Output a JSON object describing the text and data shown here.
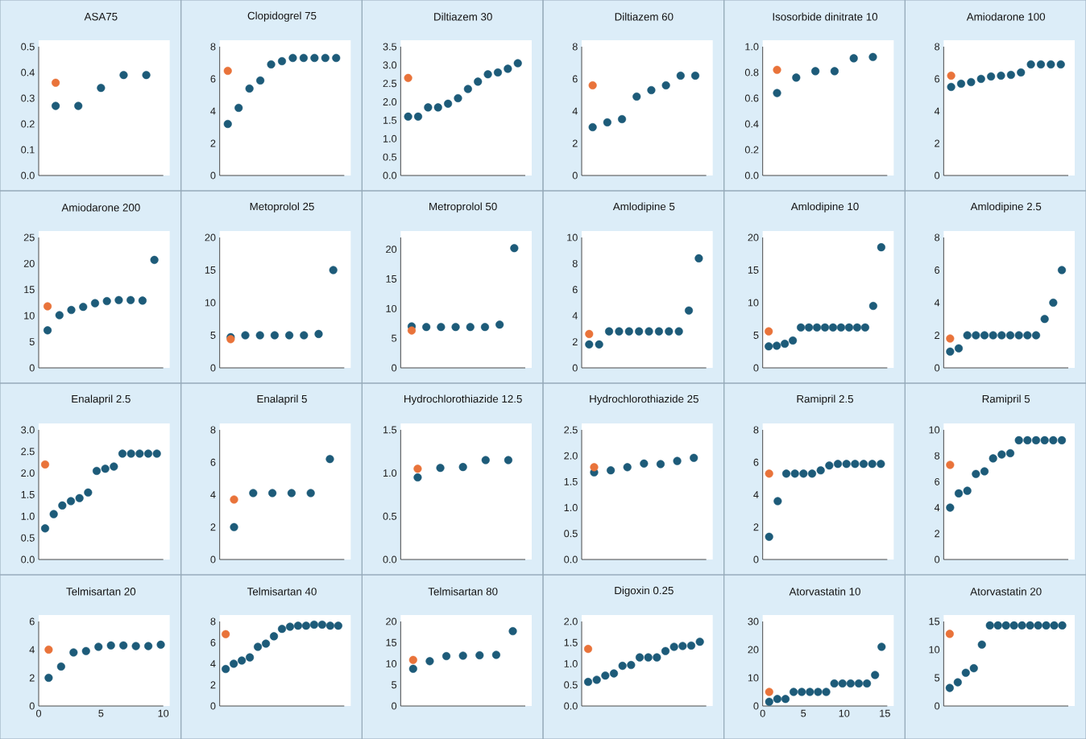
{
  "chart_data": [
    {
      "type": "scatter",
      "title": "ASA75",
      "categories": [
        null,
        null,
        null,
        null,
        null
      ],
      "ylim": [
        0,
        0.5
      ],
      "yticks": [
        {
          "value": 0,
          "label": "0.0"
        },
        0.1,
        0.2,
        0.3,
        0.4,
        0.5
      ],
      "tick_labels": "y",
      "marker": "circle",
      "series": [
        {
          "color": "#1d5b79",
          "values": [
            0.27,
            0.27,
            0.34,
            0.39,
            0.39
          ]
        },
        {
          "color": "#e9733a",
          "values": [
            0.36,
            null,
            null,
            null,
            null
          ]
        }
      ]
    },
    {
      "type": "scatter",
      "title": "Clopidogrel 75",
      "categories": [
        null,
        null,
        null,
        null,
        null,
        null,
        null,
        null,
        null,
        null,
        null
      ],
      "ylim": [
        0,
        8
      ],
      "yticks": [
        0,
        2,
        4,
        6,
        8
      ],
      "tick_labels": "y",
      "marker": "circle",
      "series": [
        {
          "color": "#1d5b79",
          "values": [
            3.2,
            4.2,
            5.4,
            5.9,
            6.9,
            7.1,
            7.3,
            7.3,
            7.3,
            7.3,
            7.3
          ]
        },
        {
          "color": "#e9733a",
          "values": [
            6.5,
            null,
            null,
            null,
            null,
            null,
            null,
            null,
            null,
            null,
            null
          ]
        }
      ]
    },
    {
      "type": "scatter",
      "title": "Diltiazem 30",
      "categories": [
        null,
        null,
        null,
        null,
        null,
        null,
        null,
        null,
        null,
        null,
        null,
        null
      ],
      "ylim": [
        0,
        3.5
      ],
      "yticks": [
        {
          "value": 0,
          "label": "0.0"
        },
        0.5,
        {
          "value": 1,
          "label": "1.0"
        },
        1.5,
        {
          "value": 2,
          "label": "2.0"
        },
        2.5,
        {
          "value": 3,
          "label": "3.0"
        },
        3.5
      ],
      "tick_labels": "y",
      "marker": "circle",
      "series": [
        {
          "color": "#1d5b79",
          "values": [
            1.6,
            1.6,
            1.85,
            1.85,
            1.95,
            2.1,
            2.35,
            2.55,
            2.75,
            2.8,
            2.9,
            3.05
          ]
        },
        {
          "color": "#e9733a",
          "values": [
            2.65,
            null,
            null,
            null,
            null,
            null,
            null,
            null,
            null,
            null,
            null,
            null
          ]
        }
      ]
    },
    {
      "type": "scatter",
      "title": "Diltiazem 60",
      "categories": [
        null,
        null,
        null,
        null,
        null,
        null,
        null,
        null
      ],
      "ylim": [
        0,
        8
      ],
      "yticks": [
        0,
        2,
        4,
        6,
        8
      ],
      "tick_labels": "y",
      "marker": "circle",
      "series": [
        {
          "color": "#1d5b79",
          "values": [
            3.0,
            3.3,
            3.5,
            4.9,
            5.3,
            5.6,
            6.2,
            6.2
          ]
        },
        {
          "color": "#e9733a",
          "values": [
            5.6,
            null,
            null,
            null,
            null,
            null,
            null,
            null
          ]
        }
      ]
    },
    {
      "type": "scatter",
      "title": "Isosorbide dinitrate 10",
      "categories": [
        null,
        null,
        null,
        null,
        null,
        null
      ],
      "ylim": [
        0,
        1
      ],
      "yticks": [
        {
          "value": 0,
          "label": "0.0"
        },
        0.2,
        0.4,
        0.6,
        0.8,
        {
          "value": 1,
          "label": "1.0"
        }
      ],
      "tick_labels": "y",
      "marker": "circle",
      "series": [
        {
          "color": "#1d5b79",
          "values": [
            0.64,
            0.76,
            0.81,
            0.81,
            0.91,
            0.92
          ]
        },
        {
          "color": "#e9733a",
          "values": [
            0.82,
            null,
            null,
            null,
            null,
            null
          ]
        }
      ]
    },
    {
      "type": "scatter",
      "title": "Amiodarone 100",
      "categories": [
        null,
        null,
        null,
        null,
        null,
        null,
        null,
        null,
        null,
        null,
        null,
        null
      ],
      "ylim": [
        0,
        8
      ],
      "yticks": [
        0,
        2,
        4,
        6,
        8
      ],
      "tick_labels": "y",
      "marker": "circle",
      "series": [
        {
          "color": "#1d5b79",
          "values": [
            5.5,
            5.7,
            5.8,
            6.0,
            6.15,
            6.2,
            6.25,
            6.4,
            6.9,
            6.9,
            6.9,
            6.9
          ]
        },
        {
          "color": "#e9733a",
          "values": [
            6.2,
            null,
            null,
            null,
            null,
            null,
            null,
            null,
            null,
            null,
            null,
            null
          ]
        }
      ]
    },
    {
      "type": "scatter",
      "title": "Amiodarone 200",
      "categories": [
        null,
        null,
        null,
        null,
        null,
        null,
        null,
        null,
        null,
        null
      ],
      "ylim": [
        0,
        25
      ],
      "yticks": [
        0,
        5,
        10,
        15,
        20,
        25
      ],
      "tick_labels": "y",
      "marker": "circle",
      "series": [
        {
          "color": "#1d5b79",
          "values": [
            7.2,
            10.1,
            11.1,
            11.7,
            12.4,
            12.8,
            13.0,
            13.0,
            12.9,
            20.7
          ]
        },
        {
          "color": "#e9733a",
          "values": [
            11.8,
            null,
            null,
            null,
            null,
            null,
            null,
            null,
            null,
            null
          ]
        }
      ]
    },
    {
      "type": "scatter",
      "title": "Metoprolol 25",
      "categories": [
        null,
        null,
        null,
        null,
        null,
        null,
        null,
        null
      ],
      "ylim": [
        0,
        20
      ],
      "yticks": [
        0,
        5,
        10,
        15,
        20
      ],
      "tick_labels": "y",
      "marker": "circle",
      "series": [
        {
          "color": "#1d5b79",
          "values": [
            4.7,
            5.0,
            5.0,
            5.0,
            5.0,
            5.0,
            5.2,
            15.0
          ]
        },
        {
          "color": "#e9733a",
          "values": [
            4.4,
            null,
            null,
            null,
            null,
            null,
            null,
            null
          ]
        }
      ]
    },
    {
      "type": "scatter",
      "title": "Metroprolol 50",
      "categories": [
        null,
        null,
        null,
        null,
        null,
        null,
        null,
        null
      ],
      "ylim": [
        0,
        22
      ],
      "yticks": [
        0,
        5,
        10,
        15,
        20
      ],
      "tick_labels": "y",
      "marker": "circle",
      "series": [
        {
          "color": "#1d5b79",
          "values": [
            7.0,
            6.9,
            6.9,
            6.9,
            6.9,
            6.9,
            7.3,
            20.2
          ]
        },
        {
          "color": "#e9733a",
          "values": [
            6.3,
            null,
            null,
            null,
            null,
            null,
            null,
            null
          ]
        }
      ]
    },
    {
      "type": "scatter",
      "title": "Amlodipine 5",
      "categories": [
        null,
        null,
        null,
        null,
        null,
        null,
        null,
        null,
        null,
        null,
        null,
        null
      ],
      "ylim": [
        0,
        10
      ],
      "yticks": [
        0,
        2,
        4,
        6,
        8,
        10
      ],
      "tick_labels": "y",
      "marker": "circle",
      "series": [
        {
          "color": "#1d5b79",
          "values": [
            1.8,
            1.8,
            2.8,
            2.8,
            2.8,
            2.8,
            2.8,
            2.8,
            2.8,
            2.8,
            4.4,
            8.4
          ]
        },
        {
          "color": "#e9733a",
          "values": [
            2.6,
            null,
            null,
            null,
            null,
            null,
            null,
            null,
            null,
            null,
            null,
            null
          ]
        }
      ]
    },
    {
      "type": "scatter",
      "title": "Amlodipine 10",
      "categories": [
        null,
        null,
        null,
        null,
        null,
        null,
        null,
        null,
        null,
        null,
        null,
        null,
        null,
        null,
        null
      ],
      "ylim": [
        0,
        20
      ],
      "yticks": [
        0,
        5,
        10,
        15,
        20
      ],
      "tick_labels": "y",
      "marker": "circle",
      "series": [
        {
          "color": "#1d5b79",
          "values": [
            3.3,
            3.4,
            3.7,
            4.2,
            6.2,
            6.2,
            6.2,
            6.2,
            6.2,
            6.2,
            6.2,
            6.2,
            6.2,
            9.5,
            18.5
          ]
        },
        {
          "color": "#e9733a",
          "values": [
            5.6,
            null,
            null,
            null,
            null,
            null,
            null,
            null,
            null,
            null,
            null,
            null,
            null,
            null,
            null
          ]
        }
      ]
    },
    {
      "type": "scatter",
      "title": "Amlodipine 2.5",
      "categories": [
        null,
        null,
        null,
        null,
        null,
        null,
        null,
        null,
        null,
        null,
        null,
        null,
        null,
        null
      ],
      "ylim": [
        0,
        8
      ],
      "yticks": [
        0,
        2,
        4,
        6,
        8
      ],
      "tick_labels": "y",
      "marker": "circle",
      "series": [
        {
          "color": "#1d5b79",
          "values": [
            1.0,
            1.2,
            2.0,
            2.0,
            2.0,
            2.0,
            2.0,
            2.0,
            2.0,
            2.0,
            2.0,
            3.0,
            4.0,
            6.0
          ]
        },
        {
          "color": "#e9733a",
          "values": [
            1.8,
            null,
            null,
            null,
            null,
            null,
            null,
            null,
            null,
            null,
            null,
            null,
            null,
            null
          ]
        }
      ]
    },
    {
      "type": "scatter",
      "title": "Enalapril 2.5",
      "categories": [
        null,
        null,
        null,
        null,
        null,
        null,
        null,
        null,
        null,
        null,
        null,
        null,
        null,
        null
      ],
      "ylim": [
        0,
        3
      ],
      "yticks": [
        {
          "value": 0,
          "label": "0.0"
        },
        0.5,
        {
          "value": 1,
          "label": "1.0"
        },
        1.5,
        {
          "value": 2,
          "label": "2.0"
        },
        2.5,
        {
          "value": 3,
          "label": "3.0"
        }
      ],
      "tick_labels": "y",
      "marker": "circle",
      "series": [
        {
          "color": "#1d5b79",
          "values": [
            0.72,
            1.05,
            1.25,
            1.35,
            1.42,
            1.55,
            2.05,
            2.1,
            2.15,
            2.45,
            2.45,
            2.45,
            2.45,
            2.45
          ]
        },
        {
          "color": "#e9733a",
          "values": [
            2.2,
            null,
            null,
            null,
            null,
            null,
            null,
            null,
            null,
            null,
            null,
            null,
            null,
            null
          ]
        }
      ]
    },
    {
      "type": "scatter",
      "title": "Enalapril 5",
      "categories": [
        null,
        null,
        null,
        null,
        null,
        null
      ],
      "ylim": [
        0,
        8
      ],
      "yticks": [
        0,
        2,
        4,
        6,
        8
      ],
      "tick_labels": "y",
      "marker": "circle",
      "series": [
        {
          "color": "#1d5b79",
          "values": [
            2.0,
            4.1,
            4.1,
            4.1,
            4.1,
            6.2
          ]
        },
        {
          "color": "#e9733a",
          "values": [
            3.7,
            null,
            null,
            null,
            null,
            null
          ]
        }
      ]
    },
    {
      "type": "scatter",
      "title": "Hydrochlorothiazide 12.5",
      "categories": [
        null,
        null,
        null,
        null,
        null
      ],
      "ylim": [
        0,
        1.5
      ],
      "yticks": [
        {
          "value": 0,
          "label": "0.0"
        },
        0.5,
        {
          "value": 1,
          "label": "1.0"
        },
        1.5
      ],
      "tick_labels": "y",
      "marker": "circle",
      "series": [
        {
          "color": "#1d5b79",
          "values": [
            0.95,
            1.06,
            1.07,
            1.15,
            1.15
          ]
        },
        {
          "color": "#e9733a",
          "values": [
            1.05,
            null,
            null,
            null,
            null
          ]
        }
      ]
    },
    {
      "type": "scatter",
      "title": "Hydrochlorothiazide 25",
      "categories": [
        null,
        null,
        null,
        null,
        null,
        null,
        null
      ],
      "ylim": [
        0,
        2.5
      ],
      "yticks": [
        {
          "value": 0,
          "label": "0.0"
        },
        0.5,
        {
          "value": 1,
          "label": "1.0"
        },
        1.5,
        {
          "value": 2,
          "label": "2.0"
        },
        2.5
      ],
      "tick_labels": "y",
      "marker": "circle",
      "series": [
        {
          "color": "#1d5b79",
          "values": [
            1.68,
            1.72,
            1.78,
            1.85,
            1.84,
            1.9,
            1.96
          ]
        },
        {
          "color": "#e9733a",
          "values": [
            1.78,
            null,
            null,
            null,
            null,
            null,
            null
          ]
        }
      ]
    },
    {
      "type": "scatter",
      "title": "Ramipril 2.5",
      "categories": [
        null,
        null,
        null,
        null,
        null,
        null,
        null,
        null,
        null,
        null,
        null,
        null,
        null,
        null
      ],
      "ylim": [
        0,
        8
      ],
      "yticks": [
        0,
        2,
        4,
        6,
        8
      ],
      "tick_labels": "y",
      "marker": "circle",
      "series": [
        {
          "color": "#1d5b79",
          "values": [
            1.4,
            3.6,
            5.3,
            5.3,
            5.3,
            5.3,
            5.5,
            5.8,
            5.9,
            5.9,
            5.9,
            5.9,
            5.9,
            5.9
          ]
        },
        {
          "color": "#e9733a",
          "values": [
            5.3,
            null,
            null,
            null,
            null,
            null,
            null,
            null,
            null,
            null,
            null,
            null,
            null,
            null
          ]
        }
      ]
    },
    {
      "type": "scatter",
      "title": "Ramipril 5",
      "categories": [
        null,
        null,
        null,
        null,
        null,
        null,
        null,
        null,
        null,
        null,
        null,
        null,
        null,
        null
      ],
      "ylim": [
        0,
        10
      ],
      "yticks": [
        0,
        2,
        4,
        6,
        8,
        10
      ],
      "tick_labels": "y",
      "marker": "circle",
      "series": [
        {
          "color": "#1d5b79",
          "values": [
            4.0,
            5.1,
            5.3,
            6.6,
            6.8,
            7.8,
            8.1,
            8.2,
            9.2,
            9.2,
            9.2,
            9.2,
            9.2,
            9.2
          ]
        },
        {
          "color": "#e9733a",
          "values": [
            7.3,
            null,
            null,
            null,
            null,
            null,
            null,
            null,
            null,
            null,
            null,
            null,
            null,
            null
          ]
        }
      ]
    },
    {
      "type": "scatter",
      "title": "Telmisartan 20",
      "x": [
        0.8,
        1.8,
        2.8,
        3.8,
        4.8,
        5.8,
        6.8,
        7.8,
        8.8,
        9.8
      ],
      "xlim": [
        0,
        10
      ],
      "xticks": [
        0,
        5,
        10
      ],
      "ylim": [
        0,
        6
      ],
      "yticks": [
        0,
        2,
        4,
        6
      ],
      "marker": "circle",
      "series": [
        {
          "color": "#1d5b79",
          "values": [
            2.0,
            2.8,
            3.8,
            3.9,
            4.2,
            4.3,
            4.3,
            4.25,
            4.25,
            4.35
          ]
        },
        {
          "color": "#e9733a",
          "values": [
            4.0,
            null,
            null,
            null,
            null,
            null,
            null,
            null,
            null,
            null
          ]
        }
      ]
    },
    {
      "type": "scatter",
      "title": "Telmisartan 40",
      "categories": [
        null,
        null,
        null,
        null,
        null,
        null,
        null,
        null,
        null,
        null,
        null,
        null,
        null,
        null,
        null
      ],
      "ylim": [
        0,
        8
      ],
      "yticks": [
        0,
        2,
        4,
        6,
        8
      ],
      "tick_labels": "y",
      "marker": "circle",
      "series": [
        {
          "color": "#1d5b79",
          "values": [
            3.5,
            4.0,
            4.3,
            4.6,
            5.6,
            5.9,
            6.6,
            7.3,
            7.5,
            7.6,
            7.6,
            7.7,
            7.7,
            7.6,
            7.6
          ]
        },
        {
          "color": "#e9733a",
          "values": [
            6.8,
            null,
            null,
            null,
            null,
            null,
            null,
            null,
            null,
            null,
            null,
            null,
            null,
            null,
            null
          ]
        }
      ]
    },
    {
      "type": "scatter",
      "title": "Telmisartan 80",
      "categories": [
        null,
        null,
        null,
        null,
        null,
        null,
        null
      ],
      "ylim": [
        0,
        20
      ],
      "yticks": [
        0,
        5,
        10,
        15,
        20
      ],
      "tick_labels": "y",
      "marker": "circle",
      "series": [
        {
          "color": "#1d5b79",
          "values": [
            8.8,
            10.6,
            11.8,
            11.9,
            12.0,
            12.1,
            17.7
          ]
        },
        {
          "color": "#e9733a",
          "values": [
            10.9,
            null,
            null,
            null,
            null,
            null,
            null
          ]
        }
      ]
    },
    {
      "type": "scatter",
      "title": "Digoxin 0.25",
      "categories": [
        null,
        null,
        null,
        null,
        null,
        null,
        null,
        null,
        null,
        null,
        null,
        null,
        null,
        null
      ],
      "ylim": [
        0,
        2
      ],
      "yticks": [
        {
          "value": 0,
          "label": "0.0"
        },
        0.5,
        {
          "value": 1,
          "label": "1.0"
        },
        1.5,
        {
          "value": 2,
          "label": "2.0"
        }
      ],
      "tick_labels": "y",
      "marker": "circle",
      "series": [
        {
          "color": "#1d5b79",
          "values": [
            0.57,
            0.62,
            0.72,
            0.77,
            0.95,
            0.97,
            1.15,
            1.15,
            1.15,
            1.3,
            1.4,
            1.42,
            1.43,
            1.52
          ]
        },
        {
          "color": "#e9733a",
          "values": [
            1.35,
            null,
            null,
            null,
            null,
            null,
            null,
            null,
            null,
            null,
            null,
            null,
            null,
            null
          ]
        }
      ]
    },
    {
      "type": "scatter",
      "title": "Atorvastatin 10",
      "x": [
        0.8,
        1.8,
        2.8,
        3.8,
        4.8,
        5.8,
        6.8,
        7.8,
        8.8,
        9.8,
        10.8,
        11.8,
        12.8,
        13.8,
        14.6
      ],
      "xlim": [
        0,
        15.3
      ],
      "xticks": [
        0,
        5,
        10,
        15
      ],
      "ylim": [
        0,
        30
      ],
      "yticks": [
        0,
        10,
        20,
        30
      ],
      "marker": "circle",
      "series": [
        {
          "color": "#1d5b79",
          "values": [
            1.5,
            2.5,
            2.5,
            5,
            5,
            5,
            5,
            5,
            8,
            8,
            8,
            8,
            8,
            11,
            21
          ]
        },
        {
          "color": "#e9733a",
          "values": [
            5,
            null,
            null,
            null,
            null,
            null,
            null,
            null,
            null,
            null,
            null,
            null,
            null,
            null,
            null
          ]
        }
      ]
    },
    {
      "type": "scatter",
      "title": "Atorvastatin 20",
      "categories": [
        null,
        null,
        null,
        null,
        null,
        null,
        null,
        null,
        null,
        null,
        null,
        null,
        null,
        null,
        null
      ],
      "ylim": [
        0,
        15
      ],
      "yticks": [
        0,
        5,
        10,
        15
      ],
      "tick_labels": "y",
      "marker": "circle",
      "series": [
        {
          "color": "#1d5b79",
          "values": [
            3.2,
            4.2,
            5.9,
            6.7,
            10.9,
            14.3,
            14.3,
            14.3,
            14.3,
            14.3,
            14.3,
            14.3,
            14.3,
            14.3,
            14.3
          ]
        },
        {
          "color": "#e9733a",
          "values": [
            12.8,
            null,
            null,
            null,
            null,
            null,
            null,
            null,
            null,
            null,
            null,
            null,
            null,
            null,
            null
          ]
        }
      ]
    }
  ]
}
